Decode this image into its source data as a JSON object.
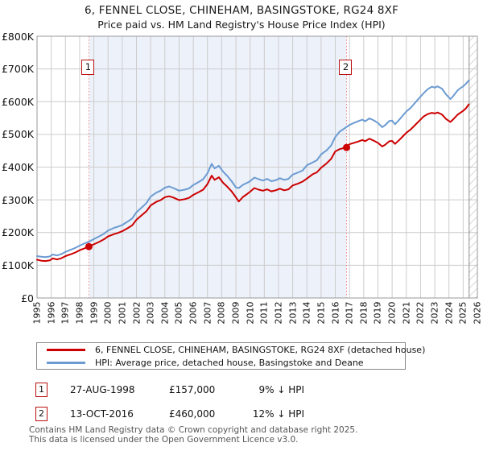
{
  "title": "6, FENNEL CLOSE, CHINEHAM, BASINGSTOKE, RG24 8XF",
  "subtitle": "Price paid vs. HM Land Registry's House Price Index (HPI)",
  "colors": {
    "price_paid_line": "#cc0000",
    "hpi_line": "#6b9bd2",
    "sale_vline": "#ee8888",
    "sale_marker": "#cc0000",
    "shade_between_sales": "#edf1fa",
    "grid": "#cccccc",
    "plot_border": "#999999",
    "hatch": "#bbbbbb",
    "footer_text": "#555555"
  },
  "chart_data": {
    "type": "line",
    "title": "6, FENNEL CLOSE, CHINEHAM, BASINGSTOKE, RG24 8XF",
    "subtitle": "Price paid vs. HM Land Registry's House Price Index (HPI)",
    "xlabel": "",
    "ylabel": "",
    "xlim": [
      1995,
      2026
    ],
    "ylim": [
      0,
      800
    ],
    "values_unit": "GBP thousands",
    "grid": true,
    "legend_position": "below",
    "x_ticks": [
      "1995",
      "1996",
      "1997",
      "1998",
      "1999",
      "2000",
      "2001",
      "2002",
      "2003",
      "2004",
      "2005",
      "2006",
      "2007",
      "2008",
      "2009",
      "2010",
      "2011",
      "2012",
      "2013",
      "2014",
      "2015",
      "2016",
      "2017",
      "2018",
      "2019",
      "2020",
      "2021",
      "2022",
      "2023",
      "2024",
      "2025",
      "2026"
    ],
    "y_ticks": [
      {
        "v": 0,
        "label": "£0"
      },
      {
        "v": 100,
        "label": "£100K"
      },
      {
        "v": 200,
        "label": "£200K"
      },
      {
        "v": 300,
        "label": "£300K"
      },
      {
        "v": 400,
        "label": "£400K"
      },
      {
        "v": 500,
        "label": "£500K"
      },
      {
        "v": 600,
        "label": "£600K"
      },
      {
        "v": 700,
        "label": "£700K"
      },
      {
        "v": 800,
        "label": "£800K"
      }
    ],
    "future_hatch_from": 2025.42,
    "series": [
      {
        "name": "price_paid",
        "label": "6, FENNEL CLOSE, CHINEHAM, BASINGSTOKE, RG24 8XF (detached house)",
        "color": "#cc0000",
        "points": [
          [
            1995.0,
            117
          ],
          [
            1995.3,
            114
          ],
          [
            1995.6,
            113
          ],
          [
            1995.9,
            115
          ],
          [
            1996.1,
            121
          ],
          [
            1996.4,
            118
          ],
          [
            1996.7,
            121
          ],
          [
            1997.0,
            128
          ],
          [
            1997.4,
            134
          ],
          [
            1997.7,
            139
          ],
          [
            1998.0,
            146
          ],
          [
            1998.3,
            151
          ],
          [
            1998.65,
            157
          ],
          [
            1999.0,
            164
          ],
          [
            1999.4,
            172
          ],
          [
            1999.7,
            179
          ],
          [
            2000.0,
            188
          ],
          [
            2000.4,
            195
          ],
          [
            2000.7,
            199
          ],
          [
            2001.0,
            204
          ],
          [
            2001.4,
            214
          ],
          [
            2001.7,
            222
          ],
          [
            2002.0,
            239
          ],
          [
            2002.4,
            254
          ],
          [
            2002.7,
            265
          ],
          [
            2003.0,
            283
          ],
          [
            2003.4,
            294
          ],
          [
            2003.7,
            299
          ],
          [
            2004.0,
            308
          ],
          [
            2004.3,
            311
          ],
          [
            2004.6,
            307
          ],
          [
            2005.0,
            299
          ],
          [
            2005.4,
            302
          ],
          [
            2005.7,
            306
          ],
          [
            2006.0,
            315
          ],
          [
            2006.4,
            324
          ],
          [
            2006.7,
            331
          ],
          [
            2007.0,
            348
          ],
          [
            2007.3,
            374
          ],
          [
            2007.5,
            361
          ],
          [
            2007.8,
            369
          ],
          [
            2008.1,
            352
          ],
          [
            2008.4,
            340
          ],
          [
            2008.7,
            326
          ],
          [
            2009.0,
            308
          ],
          [
            2009.2,
            295
          ],
          [
            2009.5,
            309
          ],
          [
            2009.8,
            318
          ],
          [
            2010.0,
            325
          ],
          [
            2010.3,
            336
          ],
          [
            2010.6,
            331
          ],
          [
            2010.9,
            328
          ],
          [
            2011.2,
            332
          ],
          [
            2011.5,
            326
          ],
          [
            2011.8,
            329
          ],
          [
            2012.1,
            334
          ],
          [
            2012.4,
            329
          ],
          [
            2012.7,
            332
          ],
          [
            2013.0,
            344
          ],
          [
            2013.4,
            350
          ],
          [
            2013.7,
            356
          ],
          [
            2014.0,
            365
          ],
          [
            2014.4,
            378
          ],
          [
            2014.7,
            384
          ],
          [
            2015.0,
            398
          ],
          [
            2015.4,
            412
          ],
          [
            2015.7,
            425
          ],
          [
            2016.0,
            448
          ],
          [
            2016.3,
            455
          ],
          [
            2016.6,
            458
          ],
          [
            2016.79,
            460
          ],
          [
            2017.0,
            470
          ],
          [
            2017.3,
            474
          ],
          [
            2017.6,
            478
          ],
          [
            2017.9,
            483
          ],
          [
            2018.1,
            479
          ],
          [
            2018.4,
            487
          ],
          [
            2018.7,
            481
          ],
          [
            2019.0,
            474
          ],
          [
            2019.3,
            463
          ],
          [
            2019.5,
            468
          ],
          [
            2019.8,
            479
          ],
          [
            2020.0,
            480
          ],
          [
            2020.2,
            471
          ],
          [
            2020.5,
            483
          ],
          [
            2020.8,
            496
          ],
          [
            2021.0,
            505
          ],
          [
            2021.3,
            515
          ],
          [
            2021.6,
            528
          ],
          [
            2021.9,
            541
          ],
          [
            2022.2,
            554
          ],
          [
            2022.5,
            562
          ],
          [
            2022.8,
            566
          ],
          [
            2023.0,
            564
          ],
          [
            2023.2,
            567
          ],
          [
            2023.5,
            561
          ],
          [
            2023.8,
            547
          ],
          [
            2024.1,
            538
          ],
          [
            2024.3,
            546
          ],
          [
            2024.6,
            560
          ],
          [
            2024.8,
            566
          ],
          [
            2025.0,
            572
          ],
          [
            2025.2,
            580
          ],
          [
            2025.4,
            592
          ]
        ]
      },
      {
        "name": "hpi",
        "label": "HPI: Average price, detached house, Basingstoke and Deane",
        "color": "#6b9bd2",
        "points": [
          [
            1995.0,
            128
          ],
          [
            1995.3,
            126
          ],
          [
            1995.6,
            125
          ],
          [
            1995.9,
            127
          ],
          [
            1996.1,
            133
          ],
          [
            1996.4,
            130
          ],
          [
            1996.7,
            134
          ],
          [
            1997.0,
            141
          ],
          [
            1997.4,
            148
          ],
          [
            1997.7,
            153
          ],
          [
            1998.0,
            160
          ],
          [
            1998.3,
            166
          ],
          [
            1998.65,
            172
          ],
          [
            1999.0,
            180
          ],
          [
            1999.4,
            189
          ],
          [
            1999.7,
            196
          ],
          [
            2000.0,
            206
          ],
          [
            2000.4,
            214
          ],
          [
            2000.7,
            218
          ],
          [
            2001.0,
            223
          ],
          [
            2001.4,
            234
          ],
          [
            2001.7,
            243
          ],
          [
            2002.0,
            262
          ],
          [
            2002.4,
            278
          ],
          [
            2002.7,
            290
          ],
          [
            2003.0,
            310
          ],
          [
            2003.4,
            322
          ],
          [
            2003.7,
            328
          ],
          [
            2004.0,
            337
          ],
          [
            2004.3,
            341
          ],
          [
            2004.6,
            336
          ],
          [
            2005.0,
            328
          ],
          [
            2005.4,
            331
          ],
          [
            2005.7,
            335
          ],
          [
            2006.0,
            345
          ],
          [
            2006.4,
            355
          ],
          [
            2006.7,
            363
          ],
          [
            2007.0,
            381
          ],
          [
            2007.3,
            410
          ],
          [
            2007.5,
            396
          ],
          [
            2007.8,
            404
          ],
          [
            2008.1,
            386
          ],
          [
            2008.4,
            373
          ],
          [
            2008.7,
            357
          ],
          [
            2009.0,
            338
          ],
          [
            2009.2,
            336
          ],
          [
            2009.5,
            346
          ],
          [
            2009.8,
            352
          ],
          [
            2010.0,
            357
          ],
          [
            2010.3,
            368
          ],
          [
            2010.6,
            363
          ],
          [
            2010.9,
            359
          ],
          [
            2011.2,
            364
          ],
          [
            2011.5,
            357
          ],
          [
            2011.8,
            360
          ],
          [
            2012.1,
            366
          ],
          [
            2012.4,
            361
          ],
          [
            2012.7,
            364
          ],
          [
            2013.0,
            377
          ],
          [
            2013.4,
            384
          ],
          [
            2013.7,
            390
          ],
          [
            2014.0,
            406
          ],
          [
            2014.4,
            414
          ],
          [
            2014.7,
            421
          ],
          [
            2015.0,
            439
          ],
          [
            2015.4,
            452
          ],
          [
            2015.7,
            466
          ],
          [
            2016.0,
            492
          ],
          [
            2016.3,
            508
          ],
          [
            2016.6,
            517
          ],
          [
            2016.8,
            523
          ],
          [
            2017.0,
            529
          ],
          [
            2017.3,
            535
          ],
          [
            2017.6,
            540
          ],
          [
            2017.9,
            545
          ],
          [
            2018.1,
            540
          ],
          [
            2018.4,
            549
          ],
          [
            2018.7,
            543
          ],
          [
            2019.0,
            535
          ],
          [
            2019.3,
            522
          ],
          [
            2019.5,
            528
          ],
          [
            2019.8,
            541
          ],
          [
            2020.0,
            542
          ],
          [
            2020.2,
            531
          ],
          [
            2020.5,
            545
          ],
          [
            2020.8,
            560
          ],
          [
            2021.0,
            570
          ],
          [
            2021.3,
            581
          ],
          [
            2021.6,
            596
          ],
          [
            2021.9,
            611
          ],
          [
            2022.2,
            625
          ],
          [
            2022.5,
            638
          ],
          [
            2022.8,
            646
          ],
          [
            2023.0,
            643
          ],
          [
            2023.2,
            647
          ],
          [
            2023.5,
            640
          ],
          [
            2023.8,
            622
          ],
          [
            2024.1,
            608
          ],
          [
            2024.3,
            617
          ],
          [
            2024.6,
            634
          ],
          [
            2024.8,
            641
          ],
          [
            2025.0,
            647
          ],
          [
            2025.2,
            655
          ],
          [
            2025.4,
            665
          ]
        ]
      }
    ],
    "sales": [
      {
        "marker": "1",
        "x": 1998.65,
        "price": 157,
        "date": "27-AUG-1998"
      },
      {
        "marker": "2",
        "x": 2016.79,
        "price": 460,
        "date": "13-OCT-2016"
      }
    ]
  },
  "annotations": [
    {
      "marker": "1",
      "date": "27-AUG-1998",
      "price": "£157,000",
      "hpi_diff": "9% ↓ HPI"
    },
    {
      "marker": "2",
      "date": "13-OCT-2016",
      "price": "£460,000",
      "hpi_diff": "12% ↓ HPI"
    }
  ],
  "footer": {
    "line1": "Contains HM Land Registry data © Crown copyright and database right 2025.",
    "line2": "This data is licensed under the Open Government Licence v3.0."
  }
}
